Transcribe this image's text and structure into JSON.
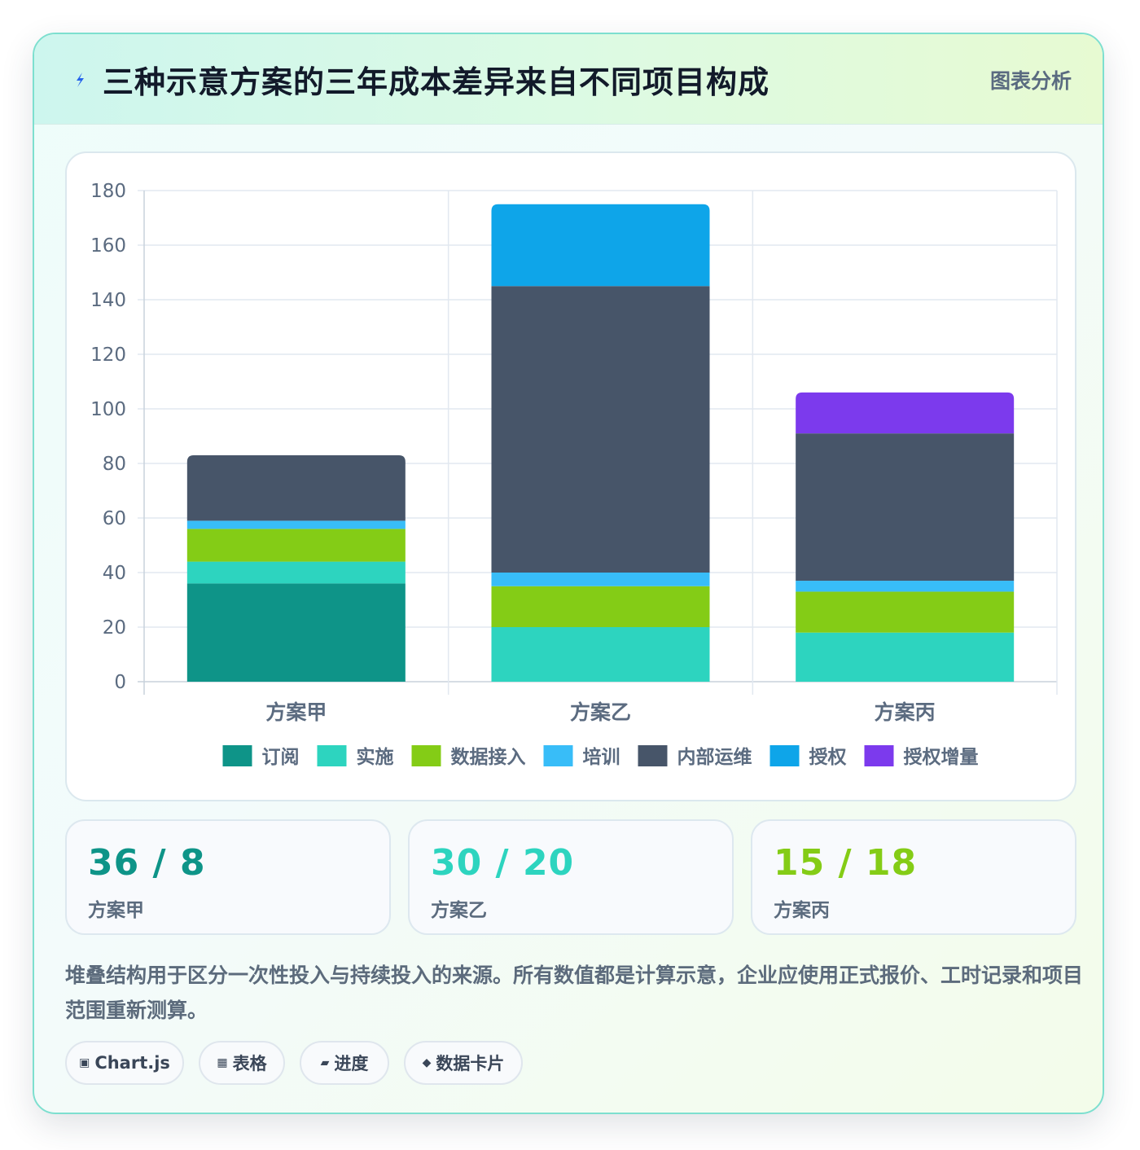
{
  "header": {
    "title": "三种示意方案的三年成本差异来自不同项目构成",
    "badge": "图表分析",
    "icon": "lightning-icon"
  },
  "chart_data": {
    "type": "bar",
    "stacked": true,
    "categories": [
      "方案甲",
      "方案乙",
      "方案丙"
    ],
    "ylim": [
      0,
      180
    ],
    "yticks": [
      0,
      20,
      40,
      60,
      80,
      100,
      120,
      140,
      160,
      180
    ],
    "legend_position": "bottom",
    "grid": true,
    "series": [
      {
        "name": "订阅",
        "color": "#0e9488",
        "values": [
          36,
          0,
          0
        ]
      },
      {
        "name": "实施",
        "color": "#2dd4bf",
        "values": [
          8,
          20,
          18
        ]
      },
      {
        "name": "数据接入",
        "color": "#84cc16",
        "values": [
          12,
          15,
          15
        ]
      },
      {
        "name": "培训",
        "color": "#38bdf8",
        "values": [
          3,
          5,
          4
        ]
      },
      {
        "name": "内部运维",
        "color": "#475569",
        "values": [
          24,
          105,
          54
        ]
      },
      {
        "name": "授权",
        "color": "#0ea5e9",
        "values": [
          0,
          30,
          0
        ]
      },
      {
        "name": "授权增量",
        "color": "#7c3aed",
        "values": [
          0,
          0,
          15
        ]
      }
    ]
  },
  "stats": [
    {
      "value": "36 / 8",
      "label": "方案甲",
      "color": "#0e9488"
    },
    {
      "value": "30 / 20",
      "label": "方案乙",
      "color": "#2dd4bf"
    },
    {
      "value": "15 / 18",
      "label": "方案丙",
      "color": "#84cc16"
    }
  ],
  "description": "堆叠结构用于区分一次性投入与持续投入的来源。所有数值都是计算示意，企业应使用正式报价、工时记录和项目范围重新测算。",
  "tags": [
    {
      "icon": "▣",
      "label": "Chart.js"
    },
    {
      "icon": "▦",
      "label": "表格"
    },
    {
      "icon": "▰",
      "label": "进度"
    },
    {
      "icon": "◆",
      "label": "数据卡片"
    }
  ]
}
